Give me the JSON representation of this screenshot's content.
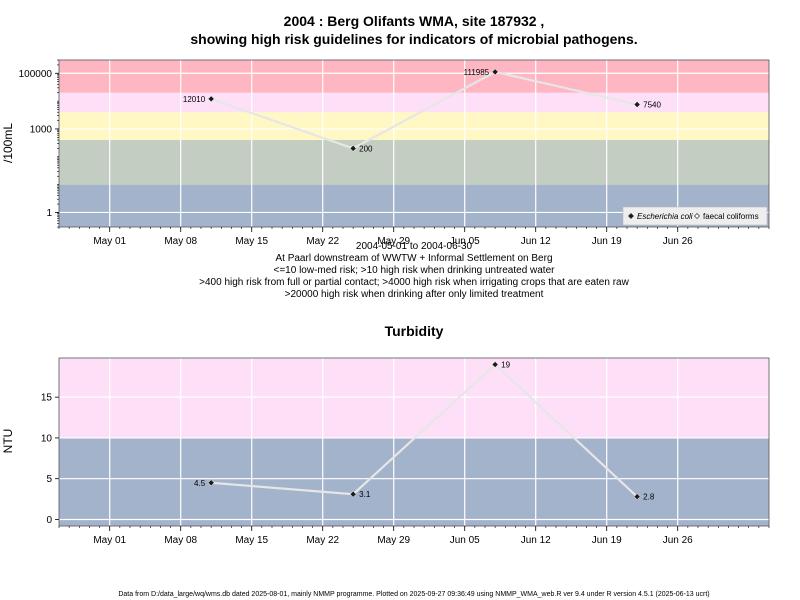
{
  "chart_data": [
    {
      "type": "line",
      "title": "2004 : Berg Olifants WMA, site 187932 ,",
      "title2": "showing high risk guidelines for indicators of microbial pathogens.",
      "ylabel": "/100mL",
      "yscale": "log",
      "ylim": [
        0.3,
        300000
      ],
      "yticks": [
        1,
        1000,
        100000
      ],
      "ytick_labels": [
        "1",
        "1000",
        "100000"
      ],
      "xlim": [
        "2004-04-26",
        "2004-07-05"
      ],
      "xticks": [
        "2004-05-01",
        "2004-05-08",
        "2004-05-15",
        "2004-05-22",
        "2004-05-29",
        "2004-06-05",
        "2004-06-12",
        "2004-06-19",
        "2004-06-26"
      ],
      "xtick_labels": [
        "May 01",
        "May 08",
        "May 15",
        "May 22",
        "May 29",
        "Jun 05",
        "Jun 12",
        "Jun 19",
        "Jun 26"
      ],
      "bands": [
        {
          "from": 0.3,
          "to": 10,
          "color": "#a3b3cb"
        },
        {
          "from": 10,
          "to": 400,
          "color": "#c4cdc2"
        },
        {
          "from": 400,
          "to": 4000,
          "color": "#fff7c4"
        },
        {
          "from": 4000,
          "to": 20000,
          "color": "#fde0f8"
        },
        {
          "from": 20000,
          "to": 300000,
          "color": "#ffb6c3"
        }
      ],
      "series": [
        {
          "name": "Escherichia coli",
          "x": [
            "2004-05-11",
            "2004-05-25",
            "2004-06-08",
            "2004-06-22"
          ],
          "y": [
            12010,
            200,
            111985,
            7540
          ],
          "labels": [
            "12010",
            "200",
            "111985",
            "7540"
          ],
          "label_side": [
            "left",
            "right",
            "left",
            "right"
          ]
        }
      ],
      "legend": {
        "position": "bottom-right",
        "entries": [
          {
            "label": "Escherichia coli",
            "marker": "filled-diamond",
            "italic": true
          },
          {
            "label": "faecal coliforms",
            "marker": "open-diamond",
            "italic": false
          }
        ]
      },
      "notes": [
        "2004-05-01 to 2004-06-30",
        "At Paarl downstream of WWTW + Informal Settlement on Berg",
        "<=10 low-med risk; >10 high risk when drinking untreated water",
        ">400 high risk from full or partial contact; >4000 high risk when irrigating crops that are eaten raw",
        ">20000 high risk when drinking after only limited treatment"
      ]
    },
    {
      "type": "line",
      "title": "Turbidity",
      "ylabel": "NTU",
      "ylim": [
        -0.8,
        19.8
      ],
      "yticks": [
        0,
        5,
        10,
        15
      ],
      "ytick_labels": [
        "0",
        "5",
        "10",
        "15"
      ],
      "xlim": [
        "2004-04-26",
        "2004-07-05"
      ],
      "xticks": [
        "2004-05-01",
        "2004-05-08",
        "2004-05-15",
        "2004-05-22",
        "2004-05-29",
        "2004-06-05",
        "2004-06-12",
        "2004-06-19",
        "2004-06-26"
      ],
      "xtick_labels": [
        "May 01",
        "May 08",
        "May 15",
        "May 22",
        "May 29",
        "Jun 05",
        "Jun 12",
        "Jun 19",
        "Jun 26"
      ],
      "bands": [
        {
          "from": -0.8,
          "to": 10,
          "color": "#a3b3cb"
        },
        {
          "from": 10,
          "to": 19.8,
          "color": "#fde0f8"
        }
      ],
      "series": [
        {
          "name": "",
          "x": [
            "2004-05-11",
            "2004-05-25",
            "2004-06-08",
            "2004-06-22"
          ],
          "y": [
            4.5,
            3.1,
            19,
            2.8
          ],
          "labels": [
            "4.5",
            "3.1",
            "19",
            "2.8"
          ],
          "label_side": [
            "left",
            "right",
            "right",
            "right"
          ]
        }
      ]
    }
  ],
  "footer": "Data from D:/data_large/wq/wms.db dated 2025-08-01, mainly NMMP programme. Plotted on 2025-09-27 09:36:49 using NMMP_WMA_web.R ver 9.4 under R version 4.5.1 (2025-06-13 ucrt)",
  "colors": {
    "grid": "#ffffff",
    "line": "#e6e6e6",
    "marker": "#1a1a1a",
    "frame": "#555555"
  }
}
